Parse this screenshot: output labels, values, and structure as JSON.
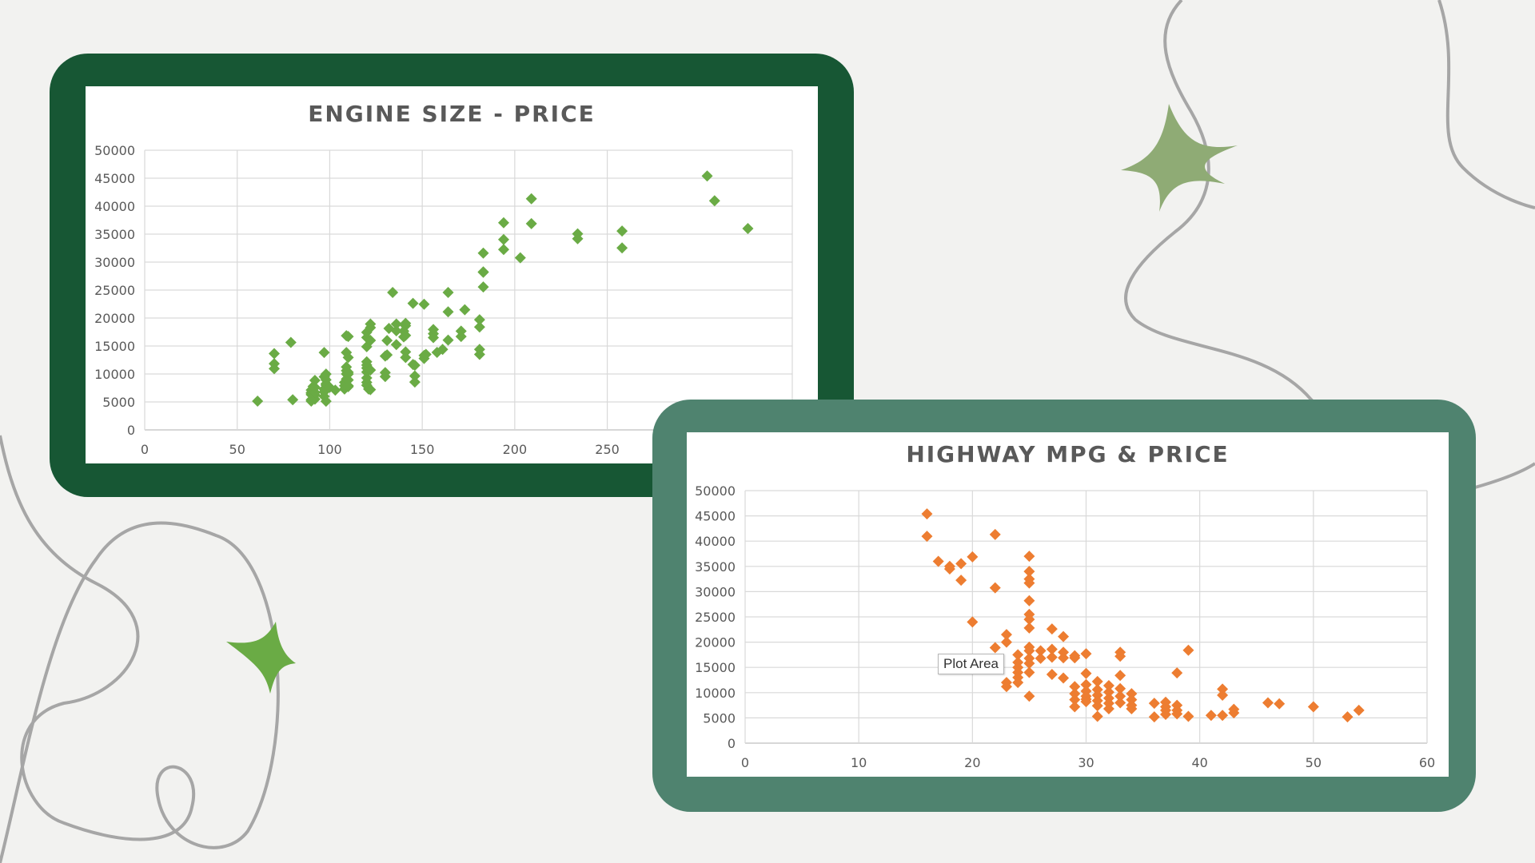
{
  "colors": {
    "background": "#f2f2f0",
    "frame_dark_green": "#175734",
    "frame_teal_green": "#4f836f",
    "series_green": "#6aab45",
    "series_orange": "#ed7d31",
    "star_sage": "#8fab75",
    "star_green": "#6aab45",
    "squiggle": "#a6a6a6"
  },
  "decorations": {
    "icons": [
      "four-point-star-icon",
      "four-point-star-icon",
      "squiggle-line"
    ]
  },
  "tooltip": {
    "text": "Plot Area"
  },
  "chart_data": [
    {
      "type": "scatter",
      "title": "ENGINE SIZE - PRICE",
      "xlabel": "",
      "ylabel": "",
      "xlim": [
        0,
        350
      ],
      "ylim": [
        0,
        50000
      ],
      "x_ticks": [
        0,
        50,
        100,
        150,
        200,
        250
      ],
      "y_ticks": [
        0,
        5000,
        10000,
        15000,
        20000,
        25000,
        30000,
        35000,
        40000,
        45000,
        50000
      ],
      "grid": true,
      "legend": "none",
      "marker": "diamond",
      "color": "#6aab45",
      "points": [
        [
          61,
          5151
        ],
        [
          70,
          11845
        ],
        [
          70,
          13645
        ],
        [
          70,
          10945
        ],
        [
          79,
          15645
        ],
        [
          80,
          5399
        ],
        [
          90,
          5151
        ],
        [
          90,
          6295
        ],
        [
          90,
          6575
        ],
        [
          90,
          7129
        ],
        [
          90,
          6649
        ],
        [
          90,
          5389
        ],
        [
          91,
          7775
        ],
        [
          92,
          5499
        ],
        [
          92,
          6229
        ],
        [
          92,
          6692
        ],
        [
          92,
          7609
        ],
        [
          92,
          8849
        ],
        [
          97,
          5999
        ],
        [
          97,
          7295
        ],
        [
          97,
          6795
        ],
        [
          97,
          9495
        ],
        [
          97,
          13845
        ],
        [
          98,
          5118
        ],
        [
          98,
          7349
        ],
        [
          98,
          7999
        ],
        [
          98,
          8249
        ],
        [
          98,
          8949
        ],
        [
          98,
          9988
        ],
        [
          100,
          7603
        ],
        [
          103,
          7099
        ],
        [
          108,
          7295
        ],
        [
          108,
          7895
        ],
        [
          108,
          8495
        ],
        [
          109,
          9095
        ],
        [
          109,
          9995
        ],
        [
          109,
          10595
        ],
        [
          109,
          11245
        ],
        [
          109,
          13845
        ],
        [
          109,
          16845
        ],
        [
          110,
          7898
        ],
        [
          110,
          8921
        ],
        [
          110,
          12945
        ],
        [
          110,
          16695
        ],
        [
          110,
          7738
        ],
        [
          110,
          9980
        ],
        [
          110,
          10295
        ],
        [
          120,
          7975
        ],
        [
          120,
          8495
        ],
        [
          120,
          9279
        ],
        [
          120,
          10345
        ],
        [
          120,
          11048
        ],
        [
          120,
          11595
        ],
        [
          120,
          12170
        ],
        [
          120,
          14869
        ],
        [
          120,
          16515
        ],
        [
          120,
          17450
        ],
        [
          121,
          7299
        ],
        [
          122,
          7198
        ],
        [
          122,
          10698
        ],
        [
          122,
          15998
        ],
        [
          122,
          18280
        ],
        [
          122,
          18920
        ],
        [
          130,
          9538
        ],
        [
          130,
          10245
        ],
        [
          130,
          13200
        ],
        [
          131,
          13415
        ],
        [
          131,
          15985
        ],
        [
          132,
          18150
        ],
        [
          134,
          24565
        ],
        [
          136,
          15250
        ],
        [
          136,
          17710
        ],
        [
          136,
          18920
        ],
        [
          140,
          16630
        ],
        [
          140,
          17669
        ],
        [
          141,
          12940
        ],
        [
          141,
          13950
        ],
        [
          141,
          16900
        ],
        [
          141,
          18620
        ],
        [
          141,
          19045
        ],
        [
          145,
          11694
        ],
        [
          145,
          22625
        ],
        [
          146,
          8558
        ],
        [
          146,
          9639
        ],
        [
          146,
          11549
        ],
        [
          151,
          12764
        ],
        [
          151,
          13295
        ],
        [
          151,
          22470
        ],
        [
          152,
          13499
        ],
        [
          156,
          16500
        ],
        [
          156,
          17199
        ],
        [
          156,
          17950
        ],
        [
          158,
          13860
        ],
        [
          161,
          14399
        ],
        [
          164,
          16049
        ],
        [
          164,
          21105
        ],
        [
          164,
          24565
        ],
        [
          171,
          16695
        ],
        [
          171,
          17669
        ],
        [
          173,
          21485
        ],
        [
          181,
          13499
        ],
        [
          181,
          14399
        ],
        [
          181,
          18399
        ],
        [
          181,
          19699
        ],
        [
          183,
          25552
        ],
        [
          183,
          28176
        ],
        [
          183,
          28248
        ],
        [
          183,
          31600
        ],
        [
          194,
          32250
        ],
        [
          194,
          34028
        ],
        [
          194,
          37028
        ],
        [
          203,
          30760
        ],
        [
          209,
          36880
        ],
        [
          209,
          41315
        ],
        [
          234,
          34184
        ],
        [
          234,
          35056
        ],
        [
          258,
          32528
        ],
        [
          258,
          35550
        ],
        [
          304,
          45400
        ],
        [
          308,
          40960
        ],
        [
          326,
          36000
        ]
      ]
    },
    {
      "type": "scatter",
      "title": "HIGHWAY MPG & PRICE",
      "xlabel": "",
      "ylabel": "",
      "xlim": [
        0,
        60
      ],
      "ylim": [
        0,
        50000
      ],
      "x_ticks": [
        0,
        10,
        20,
        30,
        40,
        50,
        60
      ],
      "y_ticks": [
        0,
        5000,
        10000,
        15000,
        20000,
        25000,
        30000,
        35000,
        40000,
        45000,
        50000
      ],
      "grid": true,
      "legend": "none",
      "marker": "diamond",
      "color": "#ed7d31",
      "points": [
        [
          16,
          45400
        ],
        [
          16,
          40960
        ],
        [
          17,
          36000
        ],
        [
          18,
          34500
        ],
        [
          18,
          35000
        ],
        [
          19,
          32250
        ],
        [
          19,
          35550
        ],
        [
          20,
          36880
        ],
        [
          20,
          24000
        ],
        [
          22,
          41315
        ],
        [
          22,
          30760
        ],
        [
          22,
          18900
        ],
        [
          23,
          21500
        ],
        [
          23,
          20000
        ],
        [
          23,
          11200
        ],
        [
          23,
          12000
        ],
        [
          24,
          17500
        ],
        [
          24,
          16000
        ],
        [
          24,
          15000
        ],
        [
          24,
          14000
        ],
        [
          24,
          13000
        ],
        [
          24,
          12000
        ],
        [
          25,
          37000
        ],
        [
          25,
          34000
        ],
        [
          25,
          32500
        ],
        [
          25,
          31700
        ],
        [
          25,
          28200
        ],
        [
          25,
          25500
        ],
        [
          25,
          24500
        ],
        [
          25,
          22800
        ],
        [
          25,
          19000
        ],
        [
          25,
          18300
        ],
        [
          25,
          16800
        ],
        [
          25,
          15800
        ],
        [
          25,
          14000
        ],
        [
          25,
          9300
        ],
        [
          26,
          18300
        ],
        [
          26,
          16800
        ],
        [
          27,
          22600
        ],
        [
          27,
          18600
        ],
        [
          27,
          17000
        ],
        [
          27,
          13600
        ],
        [
          28,
          21100
        ],
        [
          28,
          18000
        ],
        [
          28,
          16900
        ],
        [
          28,
          12900
        ],
        [
          29,
          16900
        ],
        [
          29,
          17300
        ],
        [
          29,
          11200
        ],
        [
          29,
          9800
        ],
        [
          29,
          8600
        ],
        [
          29,
          7200
        ],
        [
          30,
          17700
        ],
        [
          30,
          13800
        ],
        [
          30,
          11600
        ],
        [
          30,
          10300
        ],
        [
          30,
          9300
        ],
        [
          30,
          8700
        ],
        [
          30,
          8200
        ],
        [
          31,
          12200
        ],
        [
          31,
          10600
        ],
        [
          31,
          9500
        ],
        [
          31,
          8400
        ],
        [
          31,
          7400
        ],
        [
          31,
          5300
        ],
        [
          32,
          11400
        ],
        [
          32,
          10100
        ],
        [
          32,
          8900
        ],
        [
          32,
          7900
        ],
        [
          32,
          6800
        ],
        [
          33,
          18000
        ],
        [
          33,
          17200
        ],
        [
          33,
          13400
        ],
        [
          33,
          10800
        ],
        [
          33,
          9300
        ],
        [
          33,
          8000
        ],
        [
          34,
          9800
        ],
        [
          34,
          8600
        ],
        [
          34,
          7500
        ],
        [
          34,
          6800
        ],
        [
          36,
          7900
        ],
        [
          36,
          5200
        ],
        [
          37,
          8100
        ],
        [
          37,
          7200
        ],
        [
          37,
          6500
        ],
        [
          37,
          5700
        ],
        [
          38,
          7500
        ],
        [
          38,
          6500
        ],
        [
          38,
          5800
        ],
        [
          38,
          13900
        ],
        [
          39,
          18400
        ],
        [
          39,
          5300
        ],
        [
          41,
          5500
        ],
        [
          42,
          10700
        ],
        [
          42,
          9500
        ],
        [
          42,
          5500
        ],
        [
          43,
          6700
        ],
        [
          43,
          6000
        ],
        [
          46,
          8000
        ],
        [
          47,
          7800
        ],
        [
          50,
          7200
        ],
        [
          53,
          5200
        ],
        [
          54,
          6500
        ]
      ]
    }
  ]
}
